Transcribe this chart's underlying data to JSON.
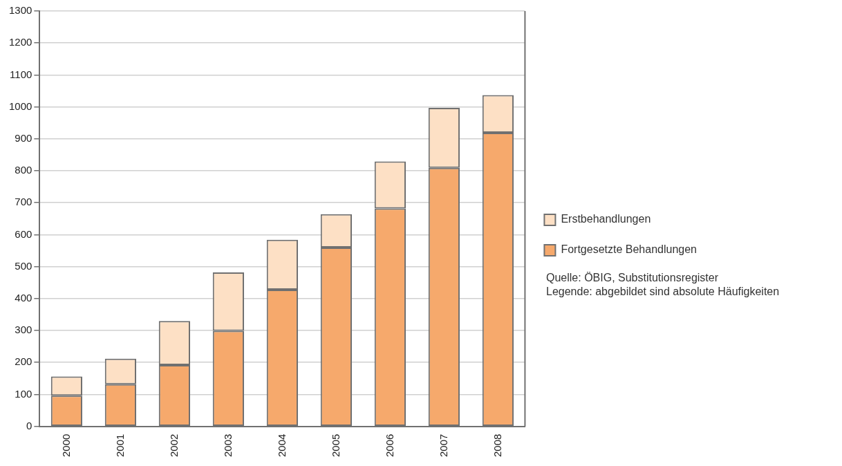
{
  "chart_data": {
    "type": "bar",
    "stacked": true,
    "categories": [
      "2000",
      "2001",
      "2002",
      "2003",
      "2004",
      "2005",
      "2006",
      "2007",
      "2008"
    ],
    "series": [
      {
        "name": "Fortgesetzte Behandlungen",
        "color": "#f6a96c",
        "values": [
          96,
          132,
          192,
          299,
          428,
          560,
          682,
          809,
          919
        ]
      },
      {
        "name": "Erstbehandlungen",
        "color": "#fde0c5",
        "values": [
          60,
          80,
          138,
          183,
          156,
          104,
          147,
          188,
          118
        ]
      }
    ],
    "ylim": [
      0,
      1300
    ],
    "yticks": [
      0,
      100,
      200,
      300,
      400,
      500,
      600,
      700,
      800,
      900,
      1000,
      1100,
      1200,
      1300
    ],
    "grid": "y",
    "legend": "right",
    "annotations": [
      "Quelle: ÖBIG, Substitutionsregister",
      "Legende: abgebildet sind absolute Häufigkeiten"
    ]
  }
}
